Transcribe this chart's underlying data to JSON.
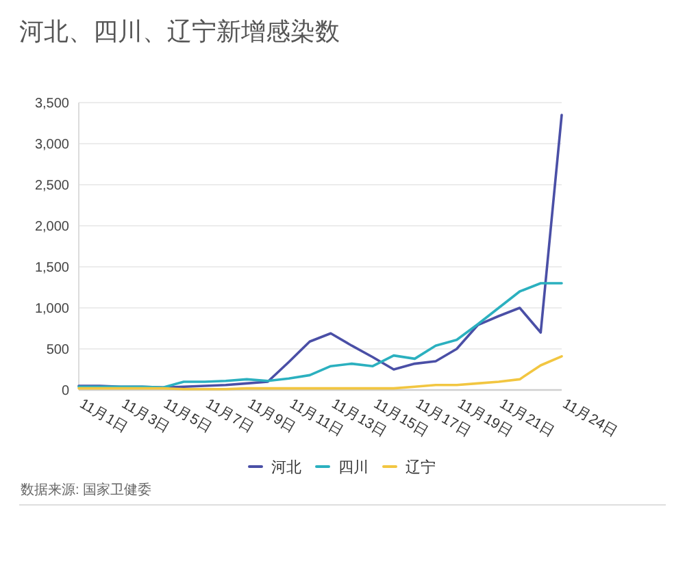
{
  "chart_data": {
    "type": "line",
    "title": "河北、四川、辽宁新增感染数",
    "categories": [
      "11月1日",
      null,
      "11月3日",
      null,
      "11月5日",
      null,
      "11月7日",
      null,
      "11月9日",
      null,
      "11月11日",
      null,
      "11月13日",
      null,
      "11月15日",
      null,
      "11月17日",
      null,
      "11月19日",
      null,
      "11月21日",
      null,
      null,
      "11月24日"
    ],
    "series": [
      {
        "name": "河北",
        "color": "#4a4fa6",
        "values": [
          50,
          50,
          40,
          40,
          30,
          40,
          50,
          60,
          80,
          100,
          340,
          590,
          690,
          540,
          400,
          250,
          320,
          350,
          500,
          790,
          900,
          1000,
          700,
          3350
        ]
      },
      {
        "name": "四川",
        "color": "#2bb0bf",
        "values": [
          40,
          40,
          40,
          40,
          30,
          100,
          100,
          110,
          130,
          110,
          140,
          180,
          290,
          320,
          290,
          420,
          380,
          540,
          610,
          800,
          1000,
          1200,
          1300,
          1300
        ]
      },
      {
        "name": "辽宁",
        "color": "#f2c641",
        "values": [
          20,
          20,
          20,
          20,
          20,
          10,
          10,
          10,
          20,
          20,
          20,
          20,
          20,
          20,
          20,
          20,
          40,
          60,
          60,
          80,
          100,
          130,
          300,
          410
        ]
      }
    ],
    "ylim": [
      0,
      3500
    ],
    "yticks": [
      0,
      500,
      {
        "value": 1000,
        "label": "1,000"
      },
      {
        "value": 1500,
        "label": "1,500"
      },
      {
        "value": 2000,
        "label": "2,000"
      },
      {
        "value": 2500,
        "label": "2,500"
      },
      {
        "value": 3000,
        "label": "3,000"
      },
      {
        "value": 3500,
        "label": "3,500"
      }
    ],
    "grid": "y",
    "legend": "bottom",
    "annotations": [
      "数据来源: 国家卫健委"
    ]
  }
}
